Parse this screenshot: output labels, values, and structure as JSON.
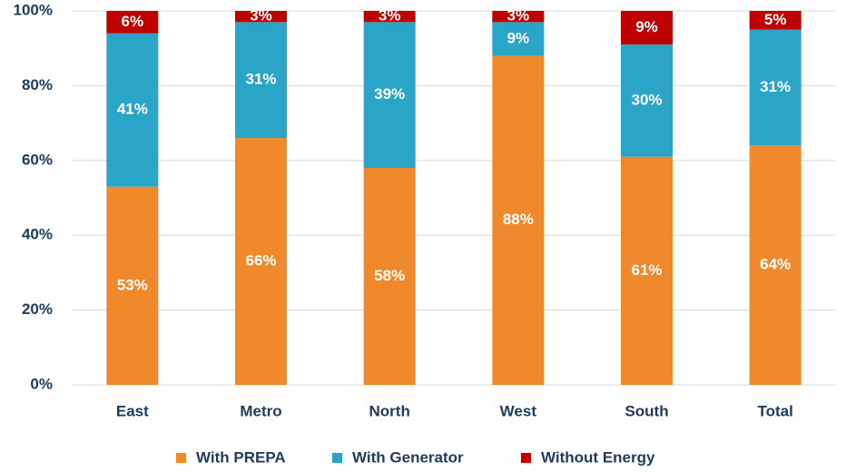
{
  "chart_data": {
    "type": "stacked_bar",
    "categories": [
      "East",
      "Metro",
      "North",
      "West",
      "South",
      "Total"
    ],
    "series": [
      {
        "name": "With PREPA",
        "color": "#f0892b",
        "values": [
          53,
          66,
          58,
          88,
          61,
          64
        ],
        "value_labels": [
          "53%",
          "66%",
          "58%",
          "88%",
          "61%",
          "64%"
        ]
      },
      {
        "name": "With Generator",
        "color": "#2aa5c8",
        "values": [
          41,
          31,
          39,
          9,
          30,
          31
        ],
        "value_labels": [
          "41%",
          "31%",
          "39%",
          "9%",
          "30%",
          "31%"
        ]
      },
      {
        "name": "Without Energy",
        "color": "#c00000",
        "values": [
          6,
          3,
          3,
          3,
          9,
          5
        ],
        "value_labels": [
          "6%",
          "3%",
          "3%",
          "3%",
          "9%",
          "5%"
        ]
      }
    ],
    "ylim": [
      0,
      100
    ],
    "yticks": [
      {
        "value": 0,
        "label": "0%"
      },
      {
        "value": 20,
        "label": "20%"
      },
      {
        "value": 40,
        "label": "40%"
      },
      {
        "value": 60,
        "label": "60%"
      },
      {
        "value": 80,
        "label": "80%"
      },
      {
        "value": 100,
        "label": "100%"
      }
    ],
    "grid": true,
    "legend": "bottom"
  }
}
